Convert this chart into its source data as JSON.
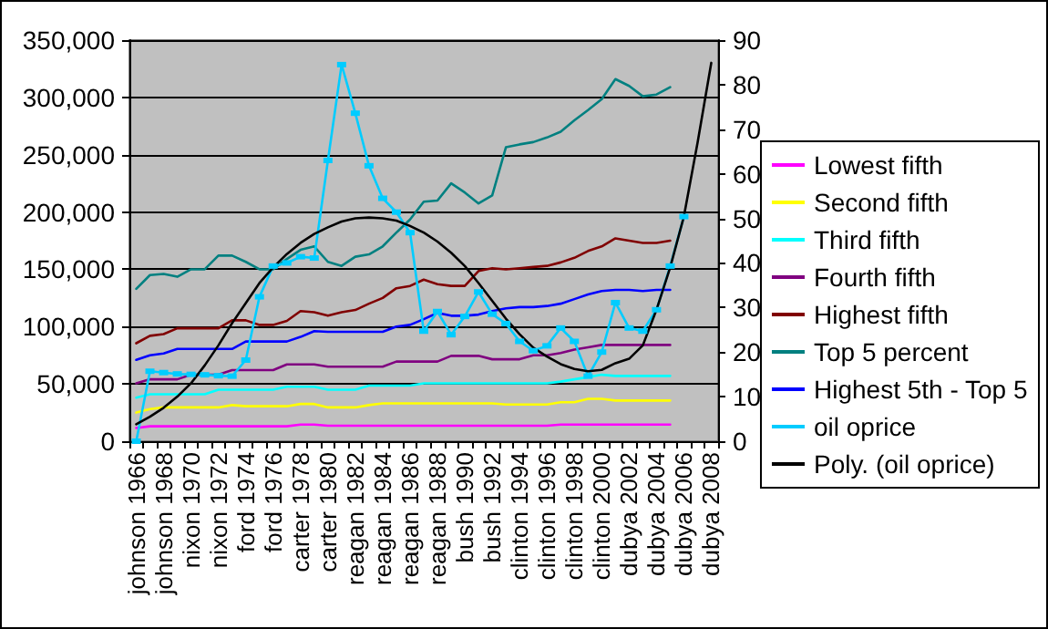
{
  "chart_data": {
    "type": "line",
    "categories": [
      "johnson 1966",
      null,
      "johnson 1968",
      null,
      "nixon 1970",
      null,
      "nixon 1972",
      null,
      "ford 1974",
      null,
      "ford 1976",
      null,
      "carter 1978",
      null,
      "carter 1980",
      null,
      "reagan 1982",
      null,
      "reagan 1984",
      null,
      "reagan 1986",
      null,
      "reagan 1988",
      null,
      "bush 1990",
      null,
      "bush 1992",
      null,
      "clinton 1994",
      null,
      "clinton 1996",
      null,
      "clinton 1998",
      null,
      "clinton 2000",
      null,
      "dubya 2002",
      null,
      "dubya 2004",
      null,
      "dubya 2006",
      null,
      "dubya 2008"
    ],
    "series": [
      {
        "name": "Lowest fifth",
        "color": "#ff00ff",
        "marker": "none",
        "values": [
          11500,
          13000,
          13000,
          13000,
          13000,
          13000,
          13000,
          13000,
          13000,
          13000,
          13000,
          13000,
          14500,
          14500,
          13500,
          13500,
          13500,
          13500,
          13500,
          13500,
          13500,
          13500,
          13500,
          13500,
          13500,
          13500,
          13500,
          13500,
          13500,
          13500,
          13500,
          14500,
          14500,
          14500,
          14500,
          14500,
          14500,
          14500,
          14500,
          14500,
          null,
          null,
          null
        ]
      },
      {
        "name": "Second fifth",
        "color": "#ffff00",
        "marker": "none",
        "values": [
          25000,
          28000,
          29500,
          29500,
          29500,
          29500,
          29500,
          31500,
          30500,
          30500,
          30500,
          30500,
          32500,
          32500,
          29500,
          29500,
          29500,
          31500,
          33000,
          33000,
          33000,
          33000,
          33000,
          33000,
          33000,
          33000,
          33000,
          32000,
          32000,
          32000,
          32000,
          34000,
          34000,
          37000,
          37000,
          35500,
          35500,
          35500,
          35500,
          35500,
          null,
          null,
          null
        ]
      },
      {
        "name": "Third fifth",
        "color": "#00ffff",
        "marker": "none",
        "values": [
          38000,
          41000,
          41000,
          41000,
          41000,
          41000,
          45000,
          45000,
          45000,
          45000,
          45000,
          47500,
          47500,
          47500,
          45000,
          45000,
          45000,
          48500,
          48500,
          48500,
          48500,
          50500,
          50500,
          50500,
          50500,
          50500,
          50500,
          50500,
          50500,
          50500,
          50500,
          52000,
          54000,
          56000,
          58000,
          57000,
          57000,
          57000,
          57000,
          57000,
          null,
          null,
          null
        ]
      },
      {
        "name": "Fourth fifth",
        "color": "#800080",
        "marker": "none",
        "values": [
          50500,
          54000,
          54000,
          54000,
          58000,
          58000,
          58000,
          62000,
          62000,
          62000,
          62000,
          67000,
          67000,
          67000,
          65000,
          65000,
          65000,
          65000,
          65000,
          69500,
          69500,
          69500,
          69500,
          74500,
          74500,
          74500,
          71500,
          71500,
          71500,
          75000,
          75000,
          77000,
          80000,
          82000,
          84000,
          84000,
          84000,
          84000,
          84000,
          84000,
          null,
          null,
          null
        ]
      },
      {
        "name": "Highest fifth",
        "color": "#800000",
        "marker": "none",
        "values": [
          85500,
          92000,
          93500,
          98500,
          98500,
          98500,
          98500,
          105500,
          105500,
          101500,
          101500,
          105000,
          113500,
          112500,
          109500,
          112500,
          114500,
          120000,
          125000,
          133500,
          135500,
          141000,
          137000,
          135500,
          135500,
          148500,
          151000,
          150000,
          151000,
          152000,
          153000,
          156000,
          160000,
          166000,
          170000,
          177000,
          175000,
          173000,
          173000,
          175000,
          null,
          null,
          null
        ]
      },
      {
        "name": "Top 5 percent",
        "color": "#008080",
        "marker": "none",
        "values": [
          133000,
          145000,
          146000,
          143500,
          150000,
          150000,
          162000,
          162000,
          156500,
          150000,
          150000,
          159000,
          167000,
          170000,
          156500,
          153000,
          161000,
          163000,
          170000,
          182000,
          193500,
          209000,
          210000,
          225000,
          217000,
          207500,
          214500,
          256500,
          259000,
          261000,
          265000,
          270000,
          280000,
          289000,
          298500,
          316000,
          310000,
          301000,
          302500,
          309000,
          null,
          null,
          null
        ]
      },
      {
        "name": "Highest 5th - Top 5",
        "color": "#0000ff",
        "marker": "none",
        "values": [
          71000,
          75000,
          76500,
          80500,
          80500,
          80500,
          80500,
          80500,
          87000,
          87000,
          87000,
          87000,
          91000,
          96000,
          95500,
          95500,
          95500,
          95500,
          95500,
          100000,
          101500,
          106500,
          112000,
          109500,
          109500,
          110500,
          113500,
          116000,
          117000,
          117000,
          118000,
          120000,
          124000,
          128000,
          131000,
          132000,
          132000,
          131000,
          132000,
          132000,
          null,
          null,
          null
        ]
      },
      {
        "name": "oil oprice",
        "color": "#00ccff",
        "marker": "square",
        "axis": "y2",
        "values": [
          0,
          15.7,
          15.4,
          15.1,
          15,
          14.9,
          14.7,
          14.6,
          18.2,
          32.4,
          39.3,
          40,
          41.4,
          41.1,
          63,
          84.5,
          73.6,
          61.8,
          54.5,
          51.4,
          46.8,
          24.7,
          29.1,
          23.9,
          28,
          33.5,
          28.5,
          26.4,
          22.4,
          20.3,
          21.4,
          25.4,
          22.4,
          14.6,
          20,
          31.1,
          25.4,
          24.7,
          29.5,
          39.3,
          50.4,
          null,
          null
        ]
      },
      {
        "name": "Poly. (oil oprice)",
        "color": "#000000",
        "marker": "none",
        "axis": "y2",
        "values": [
          3.8,
          5.5,
          7.5,
          10,
          13,
          17,
          21.5,
          26.5,
          31,
          35.5,
          39,
          42,
          44.5,
          46.5,
          48,
          49.3,
          50,
          50.2,
          50,
          49.5,
          48.3,
          46.8,
          44.8,
          42.3,
          39.3,
          35.5,
          31.5,
          27.5,
          24,
          21,
          19,
          17.3,
          16.2,
          15.7,
          16,
          17.5,
          18.5,
          21.5,
          29.5,
          39,
          50.4,
          67,
          84.9
        ]
      }
    ],
    "ylim": [
      0,
      350000
    ],
    "yticks": [
      {
        "value": 0,
        "label": "0"
      },
      {
        "value": 50000,
        "label": "50,000"
      },
      {
        "value": 100000,
        "label": "100,000"
      },
      {
        "value": 150000,
        "label": "150,000"
      },
      {
        "value": 200000,
        "label": "200,000"
      },
      {
        "value": 250000,
        "label": "250,000"
      },
      {
        "value": 300000,
        "label": "300,000"
      },
      {
        "value": 350000,
        "label": "350,000"
      }
    ],
    "y2lim": [
      0,
      90
    ],
    "y2ticks": [
      0,
      10,
      20,
      30,
      40,
      50,
      60,
      70,
      80,
      90
    ],
    "grid": "y",
    "legend": "right"
  }
}
